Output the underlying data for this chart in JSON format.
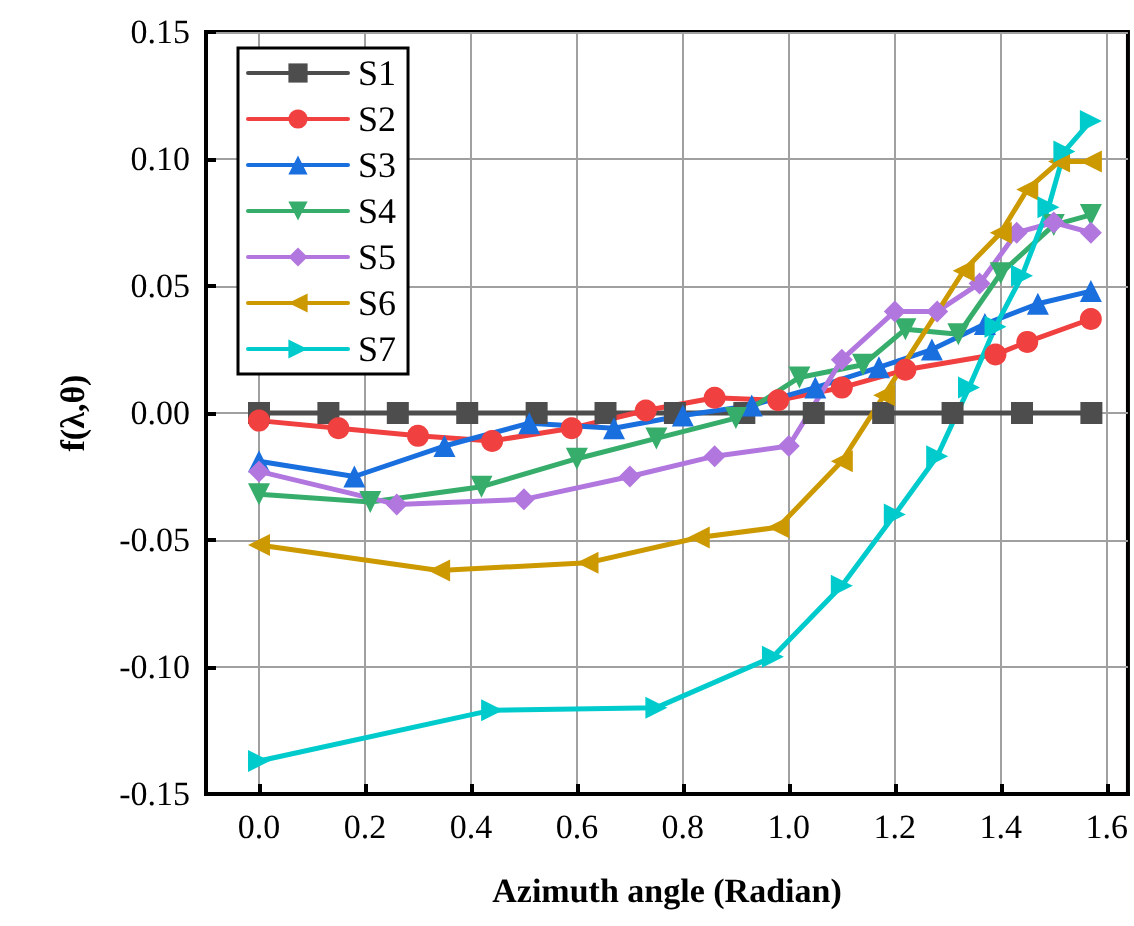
{
  "chart_data": {
    "type": "line",
    "xlabel": "Azimuth angle (Radian)",
    "ylabel": "f(λ,θ)",
    "xlim": [
      -0.1,
      1.64
    ],
    "ylim": [
      -0.15,
      0.15
    ],
    "xticks": [
      {
        "value": 0,
        "label": "0.0"
      },
      {
        "value": 0.2,
        "label": "0.2"
      },
      {
        "value": 0.4,
        "label": "0.4"
      },
      {
        "value": 0.6,
        "label": "0.6"
      },
      {
        "value": 0.8,
        "label": "0.8"
      },
      {
        "value": 1,
        "label": "1.0"
      },
      {
        "value": 1.2,
        "label": "1.2"
      },
      {
        "value": 1.4,
        "label": "1.4"
      },
      {
        "value": 1.6,
        "label": "1.6"
      }
    ],
    "yticks": [
      {
        "value": -0.15,
        "label": "-0.15"
      },
      {
        "value": -0.1,
        "label": "-0.10"
      },
      {
        "value": -0.05,
        "label": "-0.05"
      },
      {
        "value": 0,
        "label": "0.00"
      },
      {
        "value": 0.05,
        "label": "0.05"
      },
      {
        "value": 0.1,
        "label": "0.10"
      },
      {
        "value": 0.15,
        "label": "0.15"
      }
    ],
    "grid": true,
    "legend": "top left",
    "line_style": "solid",
    "series": [
      {
        "name": "S1",
        "color": "#4d4d4d",
        "marker": "square",
        "x": [
          0,
          0.131,
          0.262,
          0.393,
          0.524,
          0.654,
          0.785,
          0.916,
          1.047,
          1.178,
          1.309,
          1.44,
          1.571
        ],
        "values": [
          0,
          0,
          0,
          0,
          0,
          0,
          0,
          0,
          0,
          0,
          0,
          0,
          0
        ]
      },
      {
        "name": "S2",
        "color": "#f14040",
        "marker": "circle",
        "x": [
          0,
          0.15,
          0.3,
          0.44,
          0.59,
          0.73,
          0.86,
          0.98,
          1.1,
          1.22,
          1.39,
          1.45,
          1.57
        ],
        "values": [
          -0.003,
          -0.006,
          -0.009,
          -0.011,
          -0.006,
          0.001,
          0.006,
          0.005,
          0.01,
          0.017,
          0.023,
          0.028,
          0.037
        ]
      },
      {
        "name": "S3",
        "color": "#1a6fdf",
        "marker": "triangle",
        "x": [
          0,
          0.18,
          0.35,
          0.51,
          0.67,
          0.8,
          0.93,
          1.05,
          1.17,
          1.27,
          1.37,
          1.47,
          1.57
        ],
        "values": [
          -0.019,
          -0.025,
          -0.013,
          -0.004,
          -0.006,
          -0.001,
          0.003,
          0.01,
          0.018,
          0.025,
          0.035,
          0.043,
          0.048
        ]
      },
      {
        "name": "S4",
        "color": "#37ad6b",
        "marker": "triangle-down",
        "x": [
          0,
          0.21,
          0.42,
          0.6,
          0.75,
          0.9,
          1.02,
          1.14,
          1.22,
          1.32,
          1.4,
          1.5,
          1.57
        ],
        "values": [
          -0.032,
          -0.035,
          -0.029,
          -0.018,
          -0.01,
          -0.002,
          0.014,
          0.019,
          0.033,
          0.031,
          0.055,
          0.074,
          0.078
        ]
      },
      {
        "name": "S5",
        "color": "#b177de",
        "marker": "diamond",
        "x": [
          0,
          0.26,
          0.5,
          0.7,
          0.86,
          1,
          1.1,
          1.2,
          1.28,
          1.36,
          1.43,
          1.5,
          1.57
        ],
        "values": [
          -0.023,
          -0.036,
          -0.034,
          -0.025,
          -0.017,
          -0.013,
          0.021,
          0.04,
          0.04,
          0.051,
          0.071,
          0.075,
          0.071
        ]
      },
      {
        "name": "S6",
        "color": "#cc9900",
        "marker": "triangle-left",
        "x": [
          0,
          0.34,
          0.62,
          0.83,
          0.98,
          1.1,
          1.18,
          1.33,
          1.4,
          1.45,
          1.51,
          1.57
        ],
        "values": [
          -0.052,
          -0.062,
          -0.059,
          -0.049,
          -0.045,
          -0.019,
          0.007,
          0.056,
          0.071,
          0.088,
          0.099,
          0.099
        ]
      },
      {
        "name": "S7",
        "color": "#00cbcc",
        "marker": "triangle-right",
        "x": [
          0,
          0.44,
          0.75,
          0.97,
          1.1,
          1.2,
          1.28,
          1.34,
          1.39,
          1.44,
          1.49,
          1.52,
          1.57
        ],
        "values": [
          -0.137,
          -0.117,
          -0.116,
          -0.096,
          -0.068,
          -0.04,
          -0.017,
          0.01,
          0.034,
          0.054,
          0.081,
          0.103,
          0.115
        ]
      }
    ]
  }
}
